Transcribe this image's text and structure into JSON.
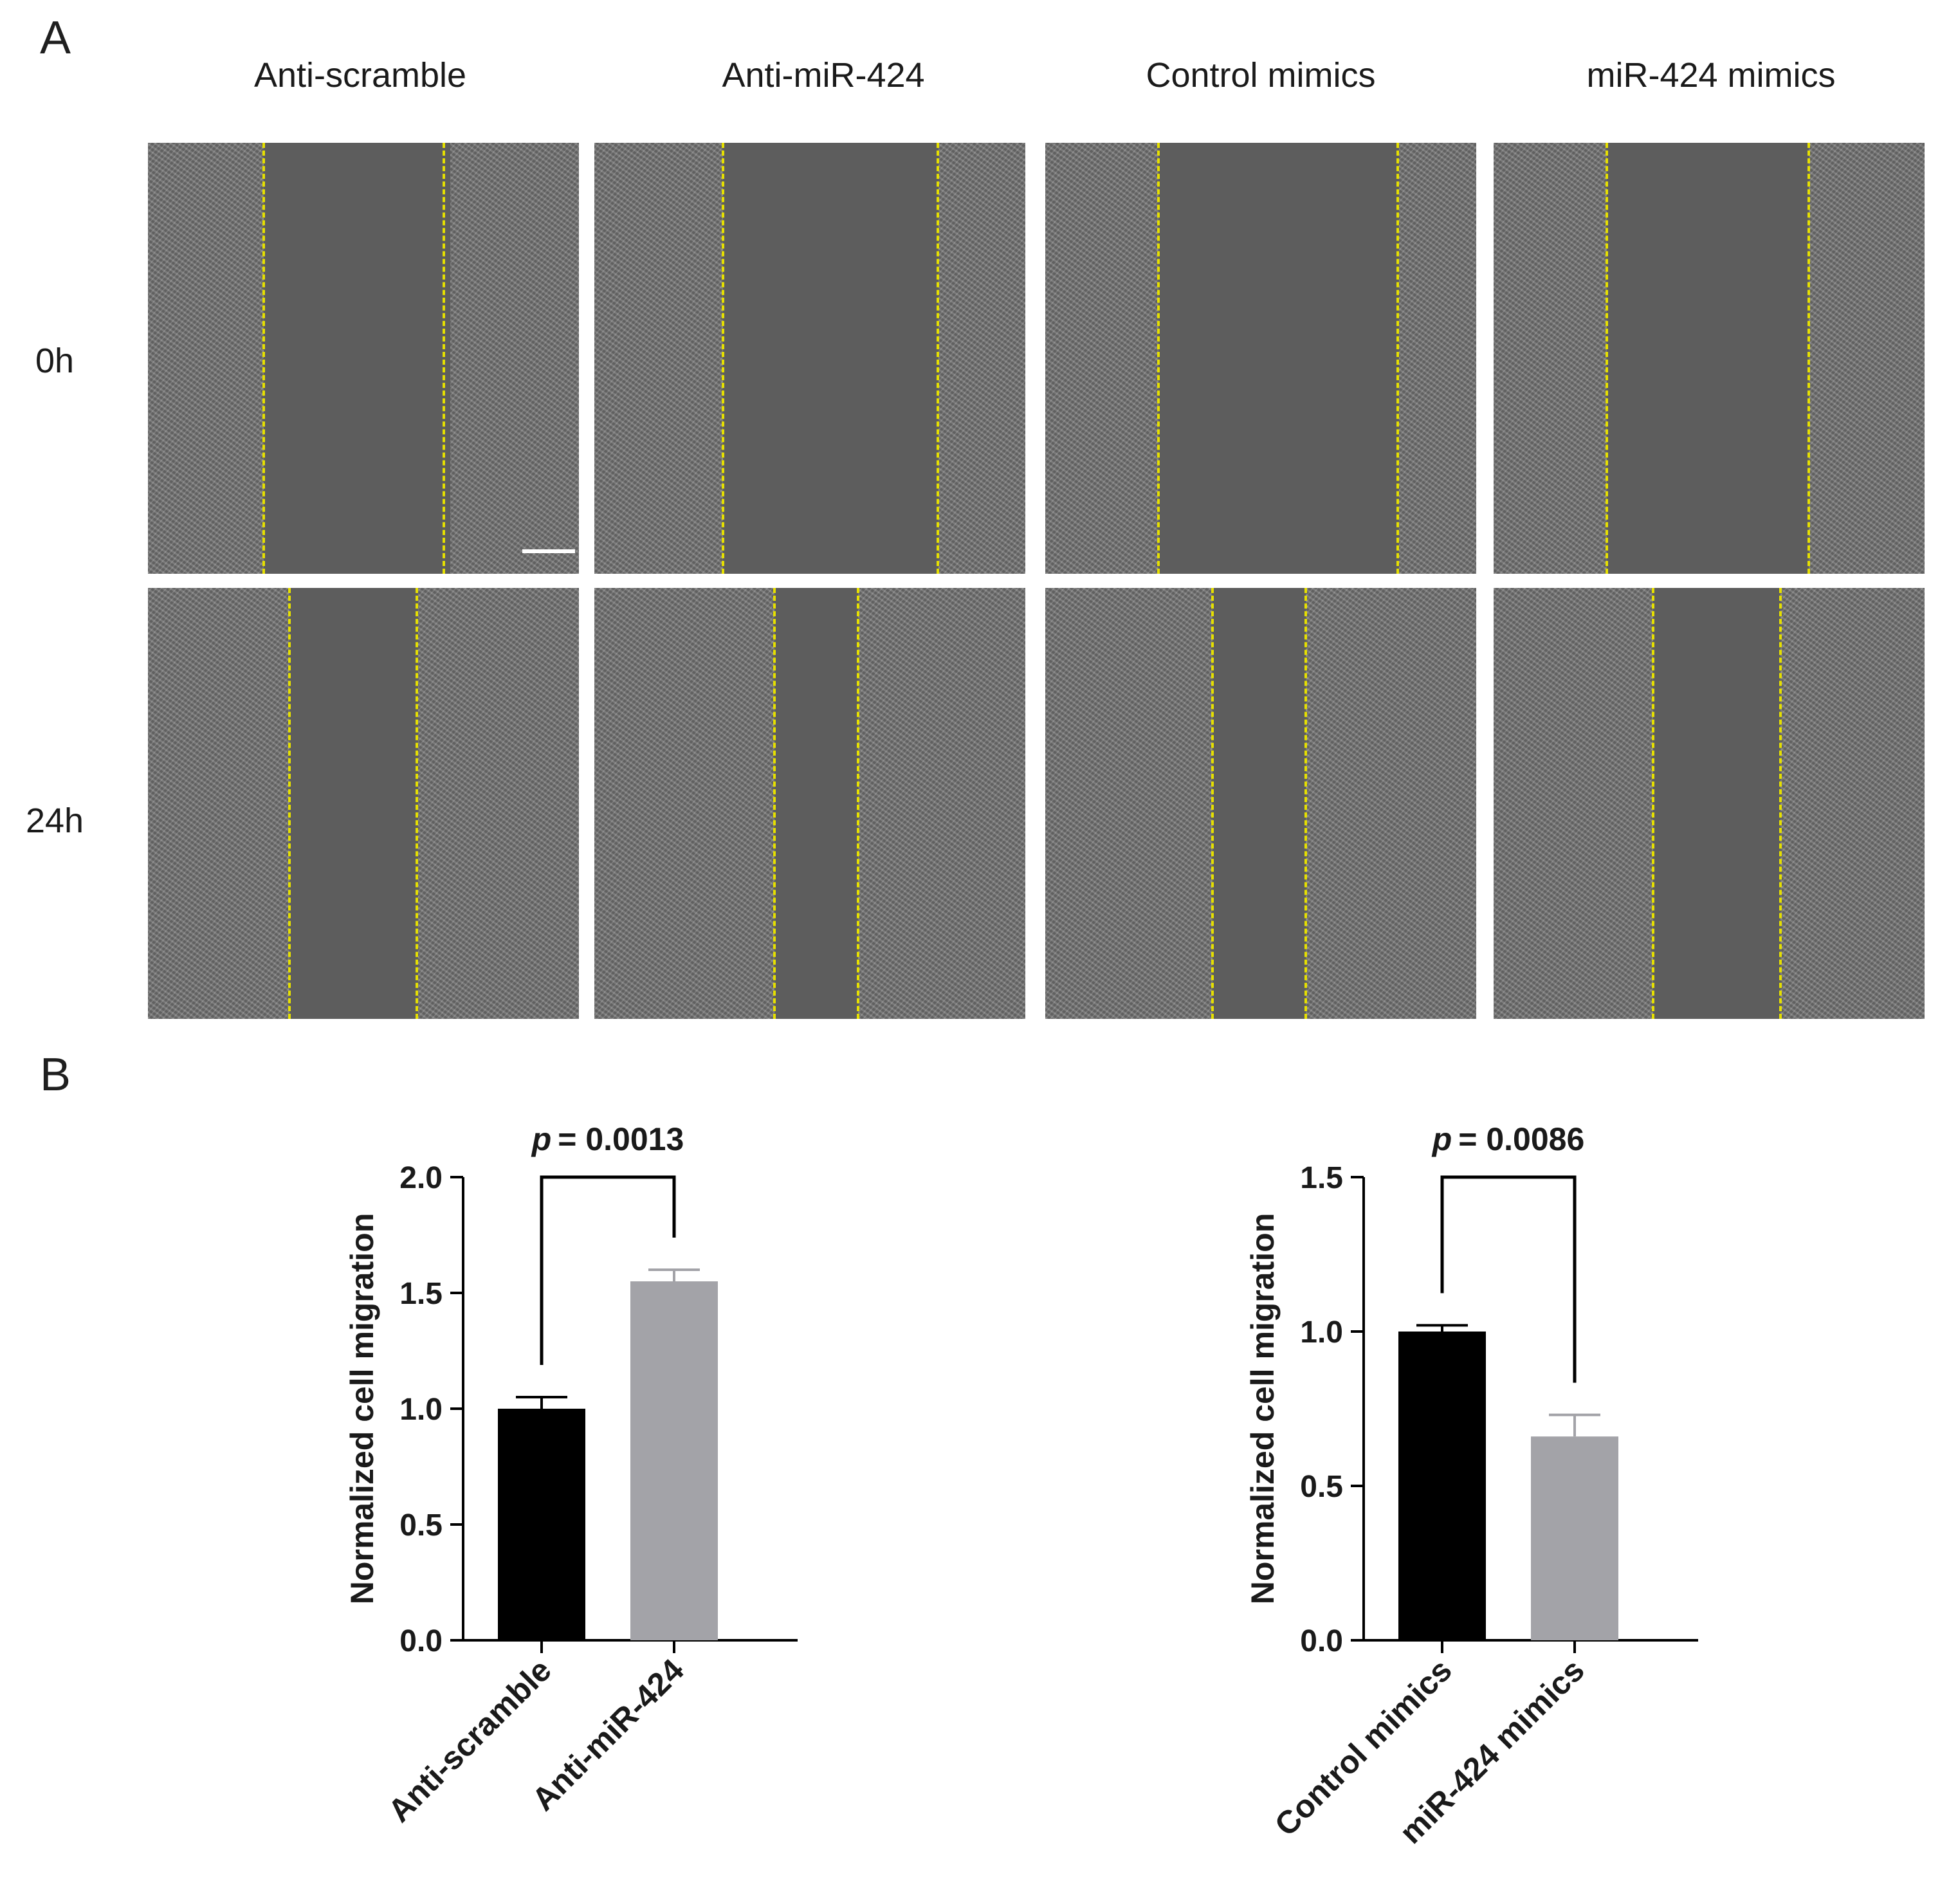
{
  "figure": {
    "panel_a_letter": "A",
    "panel_b_letter": "B",
    "columns": [
      "Anti-scramble",
      "Anti-miR-424",
      "Control mimics",
      "miR-424 mimics"
    ],
    "rows": [
      "0h",
      "24h"
    ]
  },
  "colors": {
    "black_bar": "#000000",
    "gray_bar": "#a3a3a8",
    "guide_line": "#e6e000"
  },
  "chart_data": [
    {
      "type": "bar",
      "categories": [
        "Anti-scramble",
        "Anti-miR-424"
      ],
      "values": [
        1.0,
        1.55
      ],
      "errors": [
        0.05,
        0.05
      ],
      "colors": [
        "#000000",
        "#a3a3a8"
      ],
      "ylabel": "Normalized cell migration",
      "ylim": [
        0,
        2.0
      ],
      "yticks": [
        "0.0",
        "0.5",
        "1.0",
        "1.5",
        "2.0"
      ],
      "annotation": {
        "p_symbol": "p",
        "p_text": "= 0.0013"
      }
    },
    {
      "type": "bar",
      "categories": [
        "Control mimics",
        "miR-424 mimics"
      ],
      "values": [
        1.0,
        0.66
      ],
      "errors": [
        0.02,
        0.07
      ],
      "colors": [
        "#000000",
        "#a3a3a8"
      ],
      "ylabel": "Normalized cell migration",
      "ylim": [
        0,
        1.5
      ],
      "yticks": [
        "0.0",
        "0.5",
        "1.0",
        "1.5"
      ],
      "annotation": {
        "p_symbol": "p",
        "p_text": "= 0.0086"
      }
    }
  ]
}
